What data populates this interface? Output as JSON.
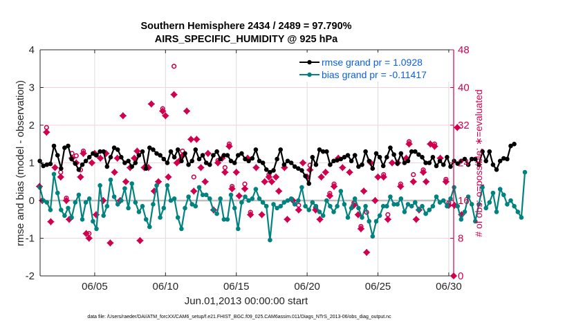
{
  "chart_data": {
    "type": "line",
    "title_lines": [
      "Southern Hemisphere 2434 / 2489 = 97.790%",
      "AIRS_SPECIFIC_HUMIDITY @ 925 hPa"
    ],
    "xlabel": "Jun.01,2013 00:00:00 start",
    "ylabel_left": "rmse and bias (model - observation)",
    "ylabel_right": "# of obs: o=possible; ∗=evaluated",
    "ylim_left": [
      -2,
      4
    ],
    "yticks_left": [
      "-2",
      "-1",
      "0",
      "1",
      "2",
      "3",
      "4"
    ],
    "ylim_right": [
      0,
      48
    ],
    "yticks_right": [
      "0",
      "8",
      "16",
      "24",
      "32",
      "40",
      "48"
    ],
    "xlim_days": [
      0,
      30.2
    ],
    "xticks": [
      {
        "label": "06/05",
        "day": 4
      },
      {
        "label": "06/10",
        "day": 9
      },
      {
        "label": "06/15",
        "day": 14
      },
      {
        "label": "06/20",
        "day": 19
      },
      {
        "label": "06/25",
        "day": 24
      },
      {
        "label": "06/30",
        "day": 29
      }
    ],
    "grid": true,
    "legend_position": "top-right",
    "legend": [
      {
        "label": "rmse grand pr = 1.0928",
        "color": "#000000"
      },
      {
        "label": "bias grand pr = -0.11417",
        "color": "#00827f"
      }
    ],
    "x_start_day": 0.125,
    "x_step_day": 0.25,
    "series": [
      {
        "name": "rmse",
        "color": "#000000",
        "axis": "left",
        "values": [
          1.05,
          0.92,
          0.95,
          0.97,
          1.45,
          1.2,
          0.85,
          1.4,
          1.45,
          1.1,
          0.98,
          0.82,
          0.95,
          1.05,
          1.15,
          1.25,
          1.2,
          1.3,
          1.3,
          0.9,
          1.15,
          1.4,
          1.35,
          1.15,
          1.0,
          1.05,
          0.9,
          1.0,
          1.2,
          1.3,
          0.85,
          1.4,
          1.35,
          1.25,
          1.2,
          1.1,
          1.0,
          1.3,
          1.15,
          1.35,
          1.05,
          1.25,
          0.95,
          1.05,
          1.35,
          1.1,
          1.2,
          1.0,
          0.95,
          1.2,
          1.3,
          1.1,
          1.2,
          1.2,
          1.05,
          1.0,
          1.2,
          1.25,
          1.1,
          1.05,
          1.12,
          1.35,
          1.05,
          1.0,
          0.82,
          0.75,
          0.8,
          1.1,
          1.35,
          0.95,
          1.05,
          1.0,
          0.9,
          0.85,
          0.8,
          0.65,
          0.45,
          1.15,
          0.95,
          1.35,
          1.3,
          1.3,
          0.95,
          1.05,
          1.07,
          1.1,
          1.15,
          1.2,
          1.05,
          1.2,
          0.9,
          0.95,
          1.3,
          1.05,
          0.85,
          1.25,
          1.15,
          0.92,
          1.15,
          1.4,
          1.22,
          0.98,
          1.25,
          1.0,
          1.05,
          1.3,
          1.3,
          1.22,
          1.15,
          1.0,
          1.0,
          1.15,
          0.92,
          1.05,
          0.95,
          1.15,
          0.9,
          1.05,
          0.98,
          1.05,
          1.1,
          0.95,
          1.1,
          1.1,
          0.95,
          1.3,
          1.05,
          1.3,
          0.95,
          0.82,
          1.05,
          1.12,
          1.1,
          1.45,
          1.5
        ]
      },
      {
        "name": "bias",
        "color": "#00827f",
        "axis": "left",
        "values": [
          0.35,
          0.0,
          -0.05,
          -0.25,
          0.7,
          0.2,
          -0.25,
          -0.4,
          -0.2,
          -0.45,
          -0.05,
          0.15,
          -0.5,
          -0.05,
          0.05,
          -0.55,
          -0.75,
          0.4,
          -0.4,
          -0.15,
          0.55,
          0.1,
          -0.1,
          0.0,
          0.32,
          -0.2,
          0.45,
          -0.05,
          -0.3,
          -0.15,
          -0.5,
          -0.7,
          -0.1,
          0.4,
          -0.45,
          -0.2,
          0.4,
          0.0,
          0.05,
          -0.45,
          -0.75,
          -0.2,
          0.1,
          -0.1,
          -0.15,
          0.35,
          0.15,
          0.15,
          0.05,
          -0.25,
          -0.35,
          0.05,
          -0.5,
          -0.5,
          0.15,
          -0.2,
          -0.75,
          -0.05,
          0.1,
          0.0,
          0.05,
          0.3,
          0.05,
          -0.05,
          -0.15,
          -1.05,
          -0.1,
          -0.2,
          -0.15,
          -0.05,
          0.0,
          0.05,
          -0.1,
          0.0,
          0.35,
          -0.15,
          -0.25,
          -0.05,
          -0.15,
          -0.3,
          -0.4,
          0.0,
          -0.15,
          -0.3,
          -0.15,
          0.25,
          -0.1,
          -0.45,
          -0.2,
          0.05,
          -0.2,
          -0.45,
          -0.15,
          -0.55,
          -0.95,
          -0.55,
          -0.4,
          -0.15,
          -0.15,
          0.1,
          -0.1,
          -0.1,
          0.05,
          -0.3,
          -0.1,
          -0.15,
          -0.05,
          -0.25,
          -0.15,
          -0.35,
          -0.25,
          -0.15,
          0.1,
          -0.05,
          0.0,
          -0.15,
          0.05,
          0.35,
          -0.15,
          -0.5,
          -0.3,
          0.1,
          -0.1,
          -0.55,
          -0.1,
          0.35,
          -0.2,
          -0.05,
          0.2,
          -0.3,
          0.3,
          0.15,
          -0.1,
          0.0,
          -0.15,
          -0.3,
          -0.45,
          0.75
        ]
      }
    ],
    "obs_evaluated": {
      "name": "# evaluated",
      "color": "#d1004f",
      "axis": "right",
      "points": [
        [
          0.1,
          19
        ],
        [
          0.3,
          16
        ],
        [
          0.6,
          30.5
        ],
        [
          0.9,
          11.5
        ],
        [
          1.2,
          23
        ],
        [
          1.6,
          21
        ],
        [
          2.0,
          16
        ],
        [
          2.2,
          12
        ],
        [
          2.4,
          25
        ],
        [
          2.7,
          24
        ],
        [
          3.0,
          21
        ],
        [
          3.2,
          26
        ],
        [
          3.4,
          9
        ],
        [
          3.6,
          8
        ],
        [
          3.8,
          24
        ],
        [
          4.0,
          26
        ],
        [
          4.1,
          13
        ],
        [
          4.4,
          25
        ],
        [
          4.6,
          16
        ],
        [
          4.8,
          26
        ],
        [
          5.1,
          7
        ],
        [
          5.4,
          22
        ],
        [
          5.6,
          25
        ],
        [
          5.8,
          16
        ],
        [
          6.0,
          34
        ],
        [
          6.2,
          20
        ],
        [
          6.5,
          23
        ],
        [
          6.8,
          25
        ],
        [
          7.0,
          26.5
        ],
        [
          7.2,
          7.5
        ],
        [
          7.5,
          23
        ],
        [
          7.8,
          23
        ],
        [
          8.0,
          36.5
        ],
        [
          8.2,
          18
        ],
        [
          8.5,
          20
        ],
        [
          8.8,
          35
        ],
        [
          9.0,
          34
        ],
        [
          9.2,
          21
        ],
        [
          9.6,
          38.5
        ],
        [
          9.8,
          24
        ],
        [
          10.0,
          24.5
        ],
        [
          10.2,
          25.5
        ],
        [
          10.5,
          35
        ],
        [
          10.8,
          29
        ],
        [
          11.0,
          18
        ],
        [
          11.2,
          29
        ],
        [
          11.5,
          23
        ],
        [
          11.8,
          20
        ],
        [
          12.0,
          26
        ],
        [
          12.4,
          14
        ],
        [
          12.7,
          24
        ],
        [
          13.0,
          25
        ],
        [
          13.2,
          22
        ],
        [
          13.5,
          27.5
        ],
        [
          13.7,
          18.5
        ],
        [
          14.0,
          22
        ],
        [
          14.2,
          17
        ],
        [
          14.6,
          18.5
        ],
        [
          14.8,
          25
        ],
        [
          15.0,
          13
        ],
        [
          15.4,
          23
        ],
        [
          15.8,
          13
        ],
        [
          16.0,
          20
        ],
        [
          16.3,
          21
        ],
        [
          16.5,
          20
        ],
        [
          16.8,
          21
        ],
        [
          17.0,
          18
        ],
        [
          17.4,
          23
        ],
        [
          17.6,
          12
        ],
        [
          18.0,
          16
        ],
        [
          18.4,
          14
        ],
        [
          18.7,
          24
        ],
        [
          19.0,
          21
        ],
        [
          19.2,
          22.5
        ],
        [
          19.6,
          14
        ],
        [
          19.9,
          12
        ],
        [
          20.0,
          21
        ],
        [
          20.3,
          22
        ],
        [
          20.6,
          17
        ],
        [
          20.9,
          19
        ],
        [
          21.2,
          25
        ],
        [
          21.5,
          23
        ],
        [
          22.0,
          22
        ],
        [
          22.3,
          15
        ],
        [
          22.6,
          13
        ],
        [
          22.8,
          10
        ],
        [
          23.0,
          18
        ],
        [
          23.2,
          5
        ],
        [
          23.5,
          24
        ],
        [
          23.8,
          16
        ],
        [
          24.0,
          21
        ],
        [
          24.4,
          21
        ],
        [
          24.7,
          12
        ],
        [
          25.0,
          24
        ],
        [
          25.4,
          24
        ],
        [
          25.6,
          19
        ],
        [
          26.0,
          25
        ],
        [
          26.2,
          28
        ],
        [
          26.5,
          20
        ],
        [
          26.7,
          12
        ],
        [
          26.9,
          14
        ],
        [
          27.2,
          22
        ],
        [
          27.4,
          20
        ],
        [
          27.7,
          28
        ],
        [
          28.0,
          27.5
        ],
        [
          28.4,
          25
        ],
        [
          28.8,
          20
        ],
        [
          29.0,
          15
        ],
        [
          29.4,
          15
        ],
        [
          29.6,
          31.5
        ],
        [
          29.9,
          13
        ]
      ]
    },
    "obs_possible": {
      "name": "# possible",
      "color": "#d1004f",
      "axis": "right",
      "points": [
        [
          0.6,
          31.5
        ],
        [
          1.6,
          22
        ],
        [
          2.0,
          16.5
        ],
        [
          2.4,
          26
        ],
        [
          2.7,
          25.5
        ],
        [
          3.0,
          22.5
        ],
        [
          3.2,
          26.5
        ],
        [
          3.6,
          9
        ],
        [
          8.8,
          35.5
        ],
        [
          9.6,
          44.5
        ],
        [
          10.2,
          26.5
        ],
        [
          11.0,
          21
        ],
        [
          12.7,
          24.5
        ],
        [
          13.2,
          23
        ],
        [
          13.5,
          28
        ],
        [
          13.7,
          19
        ],
        [
          14.6,
          19.5
        ],
        [
          15.0,
          13.5
        ],
        [
          16.3,
          21.5
        ],
        [
          16.8,
          21
        ],
        [
          18.4,
          15
        ],
        [
          19.2,
          23.5
        ],
        [
          19.6,
          14.5
        ],
        [
          20.6,
          17.5
        ],
        [
          20.9,
          19.5
        ],
        [
          22.3,
          15.5
        ],
        [
          22.8,
          10.5
        ],
        [
          23.2,
          13.5
        ],
        [
          24.4,
          21.5
        ],
        [
          24.7,
          13
        ],
        [
          25.6,
          19.5
        ],
        [
          26.2,
          28.5
        ],
        [
          26.5,
          21.5
        ],
        [
          27.2,
          22.5
        ],
        [
          28.0,
          28
        ],
        [
          28.8,
          20.5
        ],
        [
          29.0,
          15.5
        ]
      ]
    }
  },
  "footer": {
    "data_file": "data file: /Users/raeder/DAI/ATM_forcXX/CAM6_setup/f.e21.FHIST_BGC.f09_025.CAM6assim.011/Diags_NTrS_2013-06/obs_diag_output.nc"
  }
}
